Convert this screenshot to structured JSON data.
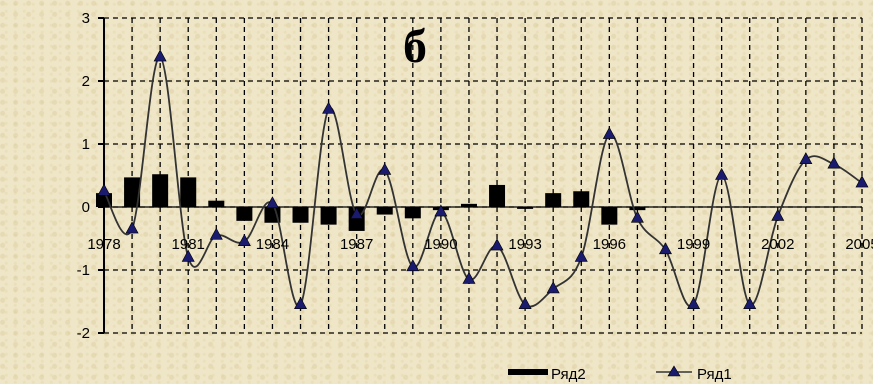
{
  "chart_data": {
    "type": "bar",
    "title": "б",
    "xlabel": "",
    "ylabel": "",
    "ylim": [
      -2,
      3
    ],
    "xlim": [
      1978,
      2005
    ],
    "yticks": [
      "3",
      "2",
      "1",
      "0",
      "-1",
      "-2"
    ],
    "xticks": [
      "1978",
      "1981",
      "1984",
      "1987",
      "1990",
      "1993",
      "1996",
      "1999",
      "2002",
      "2005"
    ],
    "grid": true,
    "legend": "bottom-right",
    "series": [
      {
        "name": "Ряд2",
        "kind": "bar",
        "color": "#000000",
        "x": [
          1978,
          1979,
          1980,
          1981,
          1982,
          1983,
          1984,
          1985,
          1986,
          1987,
          1988,
          1989,
          1990,
          1991,
          1992,
          1993,
          1994,
          1995,
          1996,
          1997,
          1998,
          1999,
          2000,
          2001,
          2002,
          2003,
          2004,
          2005
        ],
        "values": [
          0.22,
          0.47,
          0.52,
          0.47,
          0.1,
          -0.22,
          -0.25,
          -0.25,
          -0.28,
          -0.38,
          -0.12,
          -0.18,
          -0.05,
          0.05,
          0.35,
          -0.03,
          0.22,
          0.25,
          -0.28,
          -0.05,
          0,
          0,
          0,
          0,
          0,
          0,
          0,
          0
        ]
      },
      {
        "name": "Ряд1",
        "kind": "line",
        "color": "#333333",
        "marker": "triangle",
        "marker_color": "#1a1a6e",
        "x": [
          1978,
          1979,
          1980,
          1981,
          1982,
          1983,
          1984,
          1985,
          1986,
          1987,
          1988,
          1989,
          1990,
          1991,
          1992,
          1993,
          1994,
          1995,
          1996,
          1997,
          1998,
          1999,
          2000,
          2001,
          2002,
          2003,
          2004,
          2005
        ],
        "values": [
          0.25,
          -0.35,
          2.38,
          -0.8,
          -0.45,
          -0.55,
          0.05,
          -1.55,
          1.55,
          -0.12,
          0.58,
          -0.95,
          -0.08,
          -1.15,
          -0.62,
          -1.55,
          -1.3,
          -0.8,
          1.15,
          -0.18,
          -0.68,
          -1.55,
          0.5,
          -1.55,
          -0.15,
          0.75,
          0.68,
          0.38
        ]
      }
    ]
  }
}
